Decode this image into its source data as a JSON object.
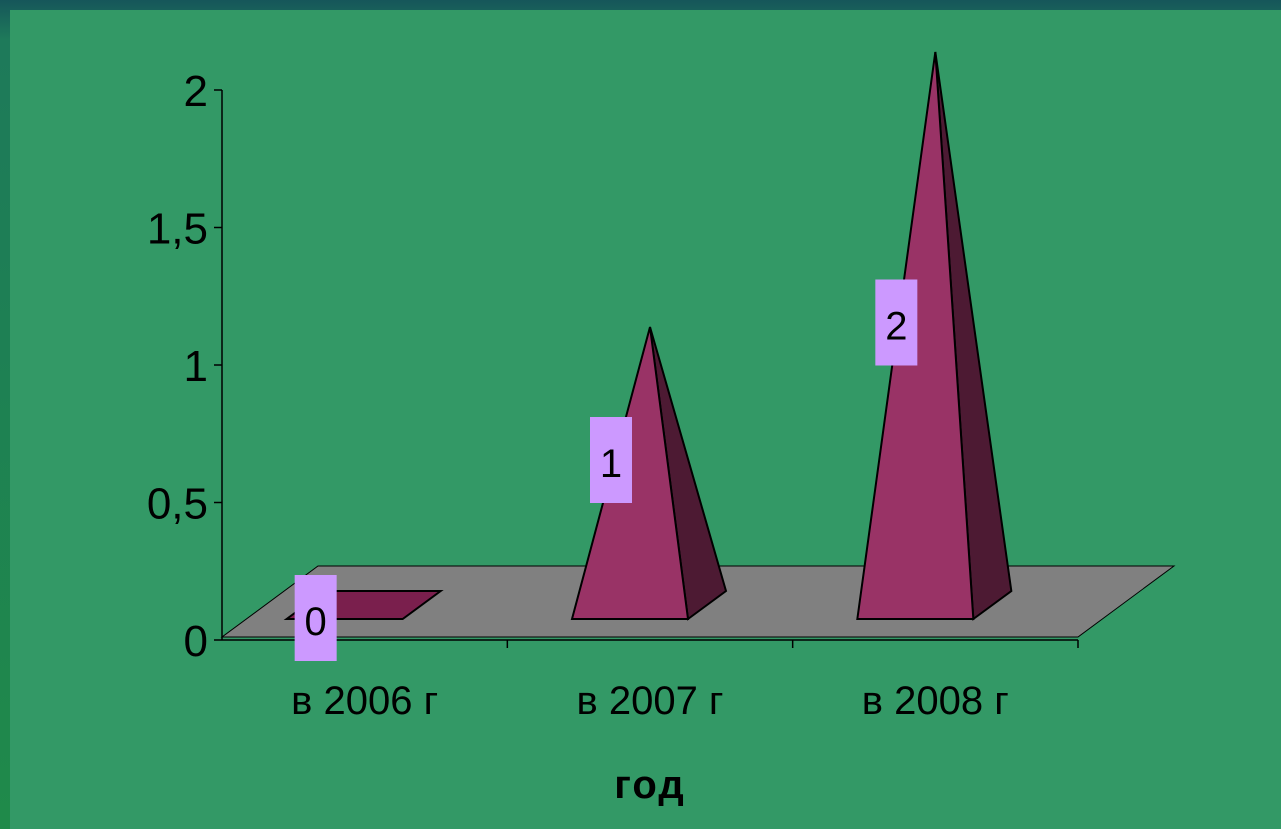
{
  "chart_data": {
    "type": "bar",
    "shape": "3d-pyramid",
    "categories": [
      "в 2006 г",
      "в 2007 г",
      "в 2008 г"
    ],
    "values": [
      0,
      1,
      2
    ],
    "data_labels": [
      "0",
      "1",
      "2"
    ],
    "title": "",
    "xlabel": "год",
    "ylabel": "",
    "ylim": [
      0,
      2
    ],
    "yticks": [
      "0",
      "0,5",
      "1",
      "1,5",
      "2"
    ],
    "grid": false,
    "legend": "none"
  },
  "colors": {
    "background": "#339966",
    "floor": "#808080",
    "pyramid_front": "#993366",
    "pyramid_side": "#4d1a33",
    "data_label_bg": "#cc99ff"
  }
}
